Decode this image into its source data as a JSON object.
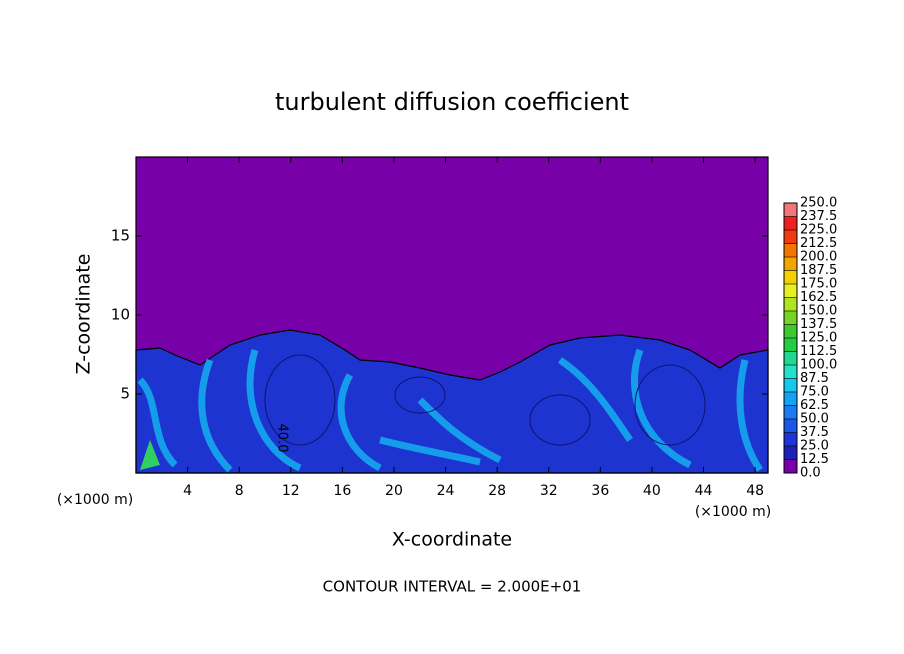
{
  "chart_data": {
    "type": "contour",
    "title": "turbulent diffusion coefficient",
    "x_label": "X-coordinate",
    "y_label": "Z-coordinate",
    "x_unit": "(×1000 m)",
    "y_unit": "(×1000 m)",
    "footer": "CONTOUR INTERVAL = 2.000E+01",
    "contour_label": "40.0",
    "xlim": [
      0,
      49
    ],
    "ylim": [
      0,
      20
    ],
    "xticks": [
      4,
      8,
      12,
      16,
      20,
      24,
      28,
      32,
      36,
      40,
      44,
      48
    ],
    "yticks": [
      5,
      10,
      15
    ],
    "colorbar_levels": [
      {
        "value": 0,
        "label": "0.0"
      },
      12.5,
      {
        "value": 25,
        "label": "25.0"
      },
      37.5,
      {
        "value": 50,
        "label": "50.0"
      },
      62.5,
      {
        "value": 75,
        "label": "75.0"
      },
      87.5,
      {
        "value": 100,
        "label": "100.0"
      },
      112.5,
      {
        "value": 125,
        "label": "125.0"
      },
      137.5,
      {
        "value": 150,
        "label": "150.0"
      },
      162.5,
      {
        "value": 175,
        "label": "175.0"
      },
      187.5,
      {
        "value": 200,
        "label": "200.0"
      },
      212.5,
      {
        "value": 225,
        "label": "225.0"
      },
      237.5,
      {
        "value": 250,
        "label": "250.0"
      }
    ],
    "colors": [
      "#7800a8",
      "#1e1eb8",
      "#1f34d8",
      "#1e56e8",
      "#1a7cf2",
      "#12a4f2",
      "#14c8ee",
      "#22e2cc",
      "#20d890",
      "#22cc44",
      "#40c830",
      "#78d424",
      "#b0e420",
      "#e6f020",
      "#f4d000",
      "#f4a400",
      "#f47400",
      "#f03a10",
      "#ee2020",
      "#f07878"
    ]
  }
}
